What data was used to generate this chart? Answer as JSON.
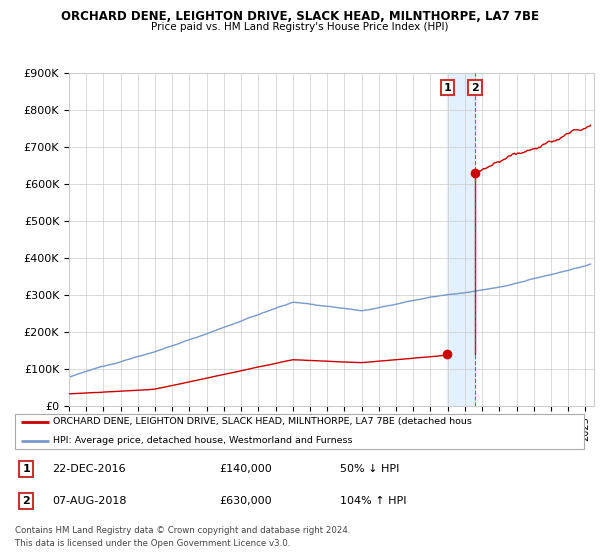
{
  "title": "ORCHARD DENE, LEIGHTON DRIVE, SLACK HEAD, MILNTHORPE, LA7 7BE",
  "subtitle": "Price paid vs. HM Land Registry's House Price Index (HPI)",
  "ylim": [
    0,
    900000
  ],
  "xlim_start": 1995.0,
  "xlim_end": 2025.5,
  "red_line_color": "#cc0000",
  "blue_line_color": "#7799cc",
  "transaction_color": "#cc0000",
  "dashed_line_color": "#cc3333",
  "shade_color": "#ddeeff",
  "background_color": "#ffffff",
  "grid_color": "#cccccc",
  "legend_label_red": "ORCHARD DENE, LEIGHTON DRIVE, SLACK HEAD, MILNTHORPE, LA7 7BE (detached hous",
  "legend_label_blue": "HPI: Average price, detached house, Westmorland and Furness",
  "transactions": [
    {
      "num": 1,
      "year": 2016.97,
      "price": 140000,
      "label": "1",
      "date": "22-DEC-2016",
      "amount": "£140,000",
      "pct": "50% ↓ HPI"
    },
    {
      "num": 2,
      "year": 2018.58,
      "price": 630000,
      "label": "2",
      "date": "07-AUG-2018",
      "amount": "£630,000",
      "pct": "104% ↑ HPI"
    }
  ],
  "footer_line1": "Contains HM Land Registry data © Crown copyright and database right 2024.",
  "footer_line2": "This data is licensed under the Open Government Licence v3.0."
}
